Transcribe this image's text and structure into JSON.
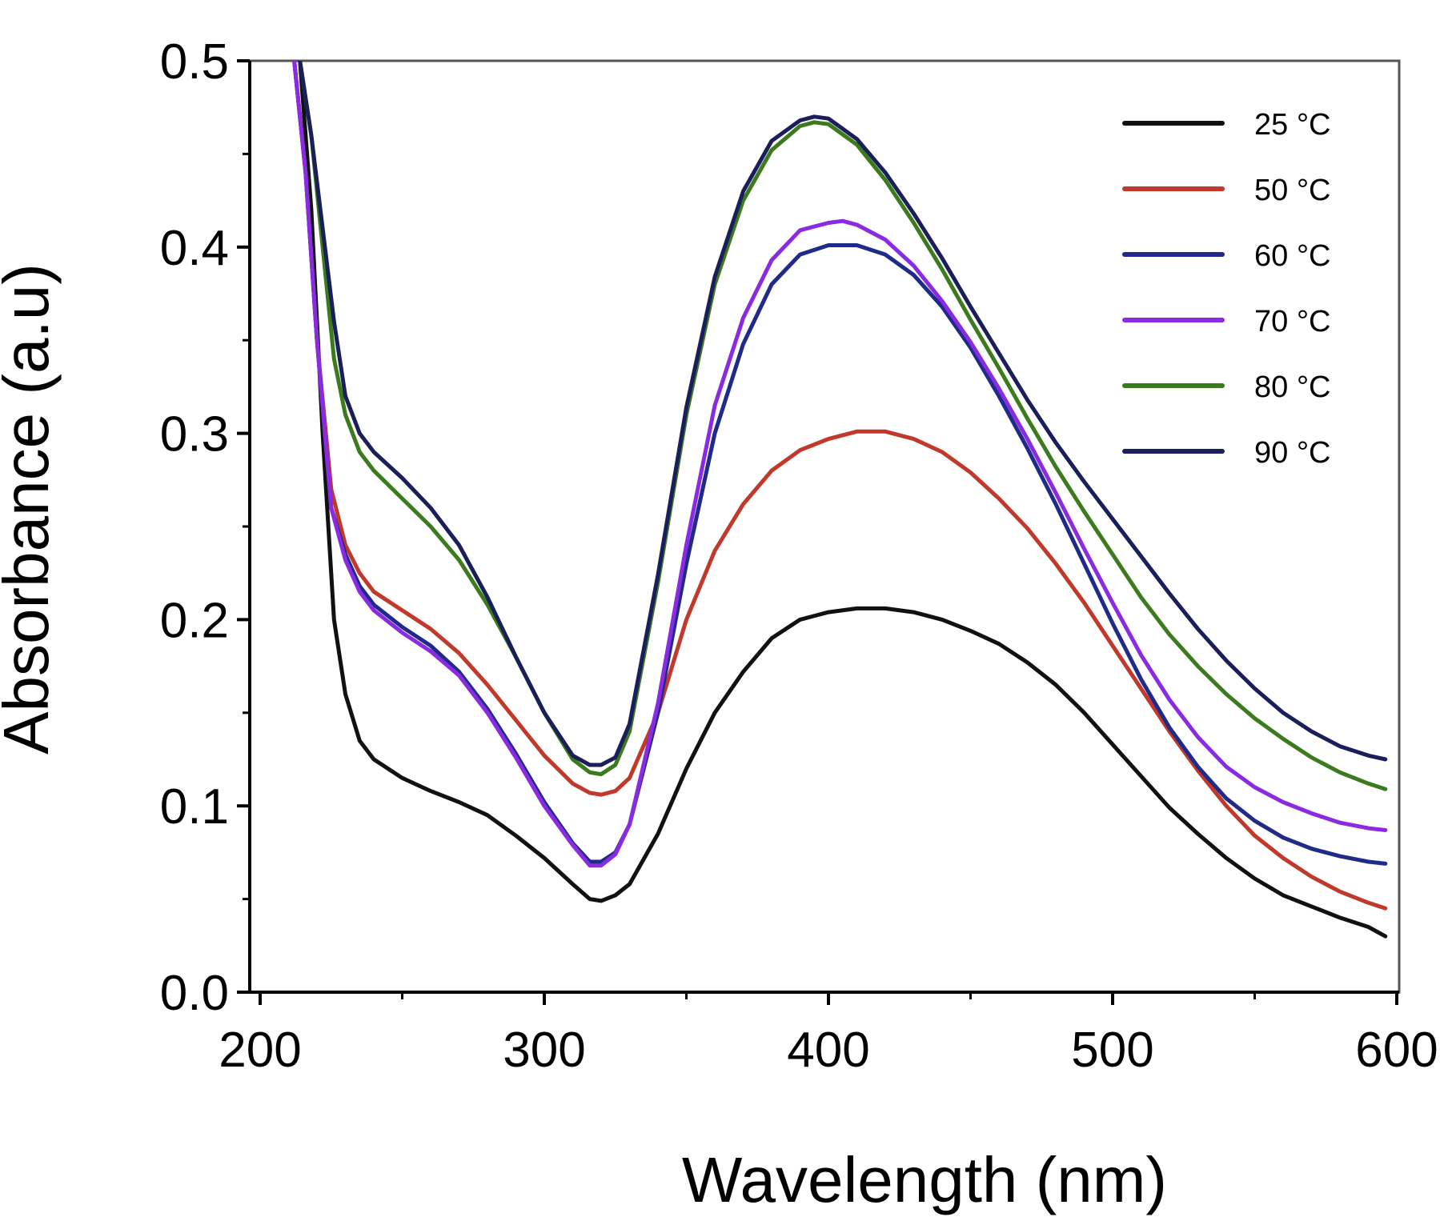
{
  "chart_data": {
    "type": "line",
    "title": "",
    "xlabel": "Wavelength (nm)",
    "ylabel": "Absorbance (a.u)",
    "xlim": [
      200,
      600
    ],
    "ylim": [
      0.0,
      0.5
    ],
    "xticks": [
      "200",
      "300",
      "400",
      "500",
      "600"
    ],
    "xtick_values": [
      200,
      300,
      400,
      500,
      600
    ],
    "yticks": [
      "0.0",
      "0.1",
      "0.2",
      "0.3",
      "0.4",
      "0.5"
    ],
    "ytick_values": [
      0.0,
      0.1,
      0.2,
      0.3,
      0.4,
      0.5
    ],
    "grid": false,
    "legend_position": "top-right",
    "series": [
      {
        "name": "25 °C",
        "color": "#111111",
        "x": [
          214,
          218,
          222,
          226,
          230,
          235,
          240,
          250,
          260,
          270,
          280,
          290,
          300,
          310,
          316,
          320,
          325,
          330,
          340,
          350,
          360,
          370,
          380,
          390,
          400,
          410,
          420,
          430,
          440,
          450,
          460,
          470,
          480,
          490,
          500,
          510,
          520,
          530,
          540,
          550,
          560,
          570,
          580,
          590,
          596
        ],
        "y": [
          0.5,
          0.42,
          0.3,
          0.2,
          0.16,
          0.135,
          0.125,
          0.115,
          0.108,
          0.102,
          0.095,
          0.084,
          0.072,
          0.058,
          0.05,
          0.049,
          0.052,
          0.058,
          0.085,
          0.12,
          0.15,
          0.172,
          0.19,
          0.2,
          0.204,
          0.206,
          0.206,
          0.204,
          0.2,
          0.194,
          0.187,
          0.177,
          0.165,
          0.15,
          0.133,
          0.116,
          0.099,
          0.085,
          0.072,
          0.061,
          0.052,
          0.046,
          0.04,
          0.035,
          0.03
        ]
      },
      {
        "name": "50 °C",
        "color": "#c0392b",
        "x": [
          212,
          216,
          220,
          225,
          230,
          235,
          240,
          250,
          260,
          270,
          280,
          290,
          300,
          310,
          316,
          320,
          325,
          330,
          340,
          350,
          360,
          370,
          380,
          390,
          400,
          410,
          420,
          430,
          440,
          450,
          460,
          470,
          480,
          490,
          500,
          510,
          520,
          530,
          540,
          550,
          560,
          570,
          580,
          590,
          596
        ],
        "y": [
          0.5,
          0.44,
          0.35,
          0.27,
          0.24,
          0.225,
          0.215,
          0.205,
          0.195,
          0.182,
          0.165,
          0.146,
          0.127,
          0.112,
          0.107,
          0.106,
          0.108,
          0.115,
          0.15,
          0.2,
          0.237,
          0.262,
          0.28,
          0.291,
          0.297,
          0.301,
          0.301,
          0.297,
          0.29,
          0.279,
          0.265,
          0.249,
          0.23,
          0.209,
          0.186,
          0.163,
          0.14,
          0.119,
          0.1,
          0.084,
          0.072,
          0.062,
          0.054,
          0.048,
          0.045
        ]
      },
      {
        "name": "60 °C",
        "color": "#1f2a8a",
        "x": [
          212,
          216,
          220,
          225,
          230,
          235,
          240,
          250,
          260,
          270,
          280,
          290,
          300,
          310,
          316,
          320,
          325,
          330,
          340,
          350,
          360,
          370,
          380,
          390,
          400,
          410,
          420,
          430,
          440,
          450,
          460,
          470,
          480,
          490,
          500,
          510,
          520,
          530,
          540,
          550,
          560,
          570,
          580,
          590,
          596
        ],
        "y": [
          0.5,
          0.44,
          0.35,
          0.26,
          0.235,
          0.218,
          0.208,
          0.196,
          0.186,
          0.172,
          0.152,
          0.128,
          0.102,
          0.08,
          0.07,
          0.07,
          0.075,
          0.09,
          0.15,
          0.23,
          0.3,
          0.348,
          0.38,
          0.396,
          0.401,
          0.401,
          0.396,
          0.385,
          0.368,
          0.346,
          0.32,
          0.292,
          0.262,
          0.23,
          0.198,
          0.168,
          0.142,
          0.121,
          0.104,
          0.092,
          0.083,
          0.077,
          0.073,
          0.07,
          0.069
        ]
      },
      {
        "name": "70 °C",
        "color": "#8a2be2",
        "x": [
          212,
          216,
          220,
          225,
          230,
          235,
          240,
          250,
          260,
          270,
          280,
          290,
          300,
          310,
          316,
          320,
          325,
          330,
          340,
          350,
          360,
          370,
          380,
          390,
          400,
          405,
          410,
          420,
          430,
          440,
          450,
          460,
          470,
          480,
          490,
          500,
          510,
          520,
          530,
          540,
          550,
          560,
          570,
          580,
          590,
          596
        ],
        "y": [
          0.5,
          0.44,
          0.35,
          0.26,
          0.232,
          0.215,
          0.205,
          0.193,
          0.183,
          0.17,
          0.15,
          0.126,
          0.1,
          0.079,
          0.068,
          0.068,
          0.074,
          0.09,
          0.155,
          0.24,
          0.315,
          0.362,
          0.393,
          0.409,
          0.413,
          0.414,
          0.412,
          0.404,
          0.39,
          0.371,
          0.349,
          0.324,
          0.297,
          0.268,
          0.238,
          0.209,
          0.181,
          0.157,
          0.137,
          0.121,
          0.11,
          0.102,
          0.096,
          0.091,
          0.088,
          0.087
        ]
      },
      {
        "name": "80 °C",
        "color": "#3c7a1e",
        "x": [
          214,
          218,
          222,
          226,
          230,
          235,
          240,
          250,
          260,
          270,
          280,
          290,
          300,
          310,
          316,
          320,
          325,
          330,
          340,
          350,
          360,
          370,
          380,
          390,
          395,
          400,
          410,
          420,
          430,
          440,
          450,
          460,
          470,
          480,
          490,
          500,
          510,
          520,
          530,
          540,
          550,
          560,
          570,
          580,
          590,
          596
        ],
        "y": [
          0.5,
          0.46,
          0.4,
          0.34,
          0.31,
          0.29,
          0.28,
          0.265,
          0.25,
          0.232,
          0.208,
          0.18,
          0.15,
          0.125,
          0.118,
          0.117,
          0.122,
          0.14,
          0.22,
          0.31,
          0.38,
          0.425,
          0.452,
          0.465,
          0.467,
          0.466,
          0.455,
          0.436,
          0.413,
          0.388,
          0.361,
          0.335,
          0.308,
          0.282,
          0.258,
          0.235,
          0.212,
          0.192,
          0.175,
          0.16,
          0.147,
          0.136,
          0.126,
          0.118,
          0.112,
          0.109
        ]
      },
      {
        "name": "90 °C",
        "color": "#1a1f5a",
        "x": [
          214,
          218,
          222,
          226,
          230,
          235,
          240,
          250,
          260,
          270,
          280,
          290,
          300,
          310,
          316,
          320,
          325,
          330,
          340,
          350,
          360,
          370,
          380,
          390,
          395,
          400,
          410,
          420,
          430,
          440,
          450,
          460,
          470,
          480,
          490,
          500,
          510,
          520,
          530,
          540,
          550,
          560,
          570,
          580,
          590,
          596
        ],
        "y": [
          0.5,
          0.46,
          0.41,
          0.36,
          0.32,
          0.3,
          0.29,
          0.276,
          0.26,
          0.24,
          0.212,
          0.18,
          0.15,
          0.127,
          0.122,
          0.122,
          0.126,
          0.144,
          0.224,
          0.314,
          0.384,
          0.43,
          0.457,
          0.468,
          0.47,
          0.469,
          0.458,
          0.44,
          0.418,
          0.394,
          0.368,
          0.343,
          0.318,
          0.295,
          0.274,
          0.254,
          0.234,
          0.214,
          0.195,
          0.178,
          0.163,
          0.15,
          0.14,
          0.132,
          0.127,
          0.125
        ]
      }
    ]
  }
}
